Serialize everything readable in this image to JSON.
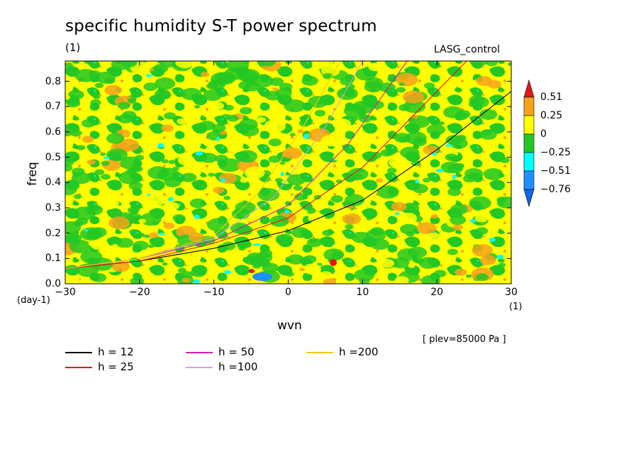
{
  "chart_data": {
    "type": "heatmap",
    "title": "specific humidity S-T power spectrum",
    "unit_label": "(1)",
    "model_label": "LASG_control",
    "xlabel": "wvn",
    "ylabel": "freq",
    "x_unit_label": "(1)",
    "y_unit_label": "(day-1)",
    "level_label": "[ plev=85000 Pa ]",
    "xlim": [
      -30,
      30
    ],
    "ylim": [
      0,
      0.88
    ],
    "x_ticks": [
      "−30",
      "−20",
      "−10",
      "0",
      "10",
      "20",
      "30"
    ],
    "x_tick_values": [
      -30,
      -20,
      -10,
      0,
      10,
      20,
      30
    ],
    "y_ticks": [
      "0.0",
      "0.1",
      "0.2",
      "0.3",
      "0.4",
      "0.5",
      "0.6",
      "0.7",
      "0.8"
    ],
    "y_tick_values": [
      0,
      0.1,
      0.2,
      0.3,
      0.4,
      0.5,
      0.6,
      0.7,
      0.8
    ],
    "colorbar": {
      "labels": [
        "0.51",
        "0.25",
        "0",
        "−0.25",
        "−0.51",
        "−0.76"
      ],
      "levels": [
        0.51,
        0.25,
        0,
        -0.25,
        -0.51,
        -0.76
      ],
      "colors": [
        "#e8141c",
        "#f7a21b",
        "#ffff00",
        "#23c823",
        "#00ffff",
        "#1e90ff",
        "#1464e6"
      ]
    },
    "series": [
      {
        "name": "h = 12",
        "color": "#000000",
        "points": [
          [
            -30,
            0.06
          ],
          [
            -20,
            0.09
          ],
          [
            -10,
            0.14
          ],
          [
            0,
            0.21
          ],
          [
            10,
            0.33
          ],
          [
            20,
            0.53
          ],
          [
            30,
            0.76
          ]
        ]
      },
      {
        "name": "h = 25",
        "color": "#e8141c",
        "points": [
          [
            -30,
            0.06
          ],
          [
            -20,
            0.09
          ],
          [
            -10,
            0.16
          ],
          [
            0,
            0.26
          ],
          [
            10,
            0.46
          ],
          [
            24,
            0.88
          ]
        ]
      },
      {
        "name": "h = 50",
        "color": "#d21eb4",
        "points": [
          [
            -30,
            0.06
          ],
          [
            -20,
            0.1
          ],
          [
            -10,
            0.17
          ],
          [
            0,
            0.31
          ],
          [
            8,
            0.55
          ],
          [
            16,
            0.88
          ]
        ]
      },
      {
        "name": "h =100",
        "color": "#d7a0dc",
        "points": [
          [
            -30,
            0.06
          ],
          [
            -20,
            0.1
          ],
          [
            -10,
            0.18
          ],
          [
            -2,
            0.34
          ],
          [
            5,
            0.62
          ],
          [
            10,
            0.88
          ]
        ]
      },
      {
        "name": "h =200",
        "color": "#f2c814",
        "points": [
          [
            -30,
            0.06
          ],
          [
            -20,
            0.1
          ],
          [
            -10,
            0.19
          ],
          [
            -4,
            0.36
          ],
          [
            2,
            0.62
          ],
          [
            7,
            0.88
          ]
        ]
      }
    ]
  }
}
